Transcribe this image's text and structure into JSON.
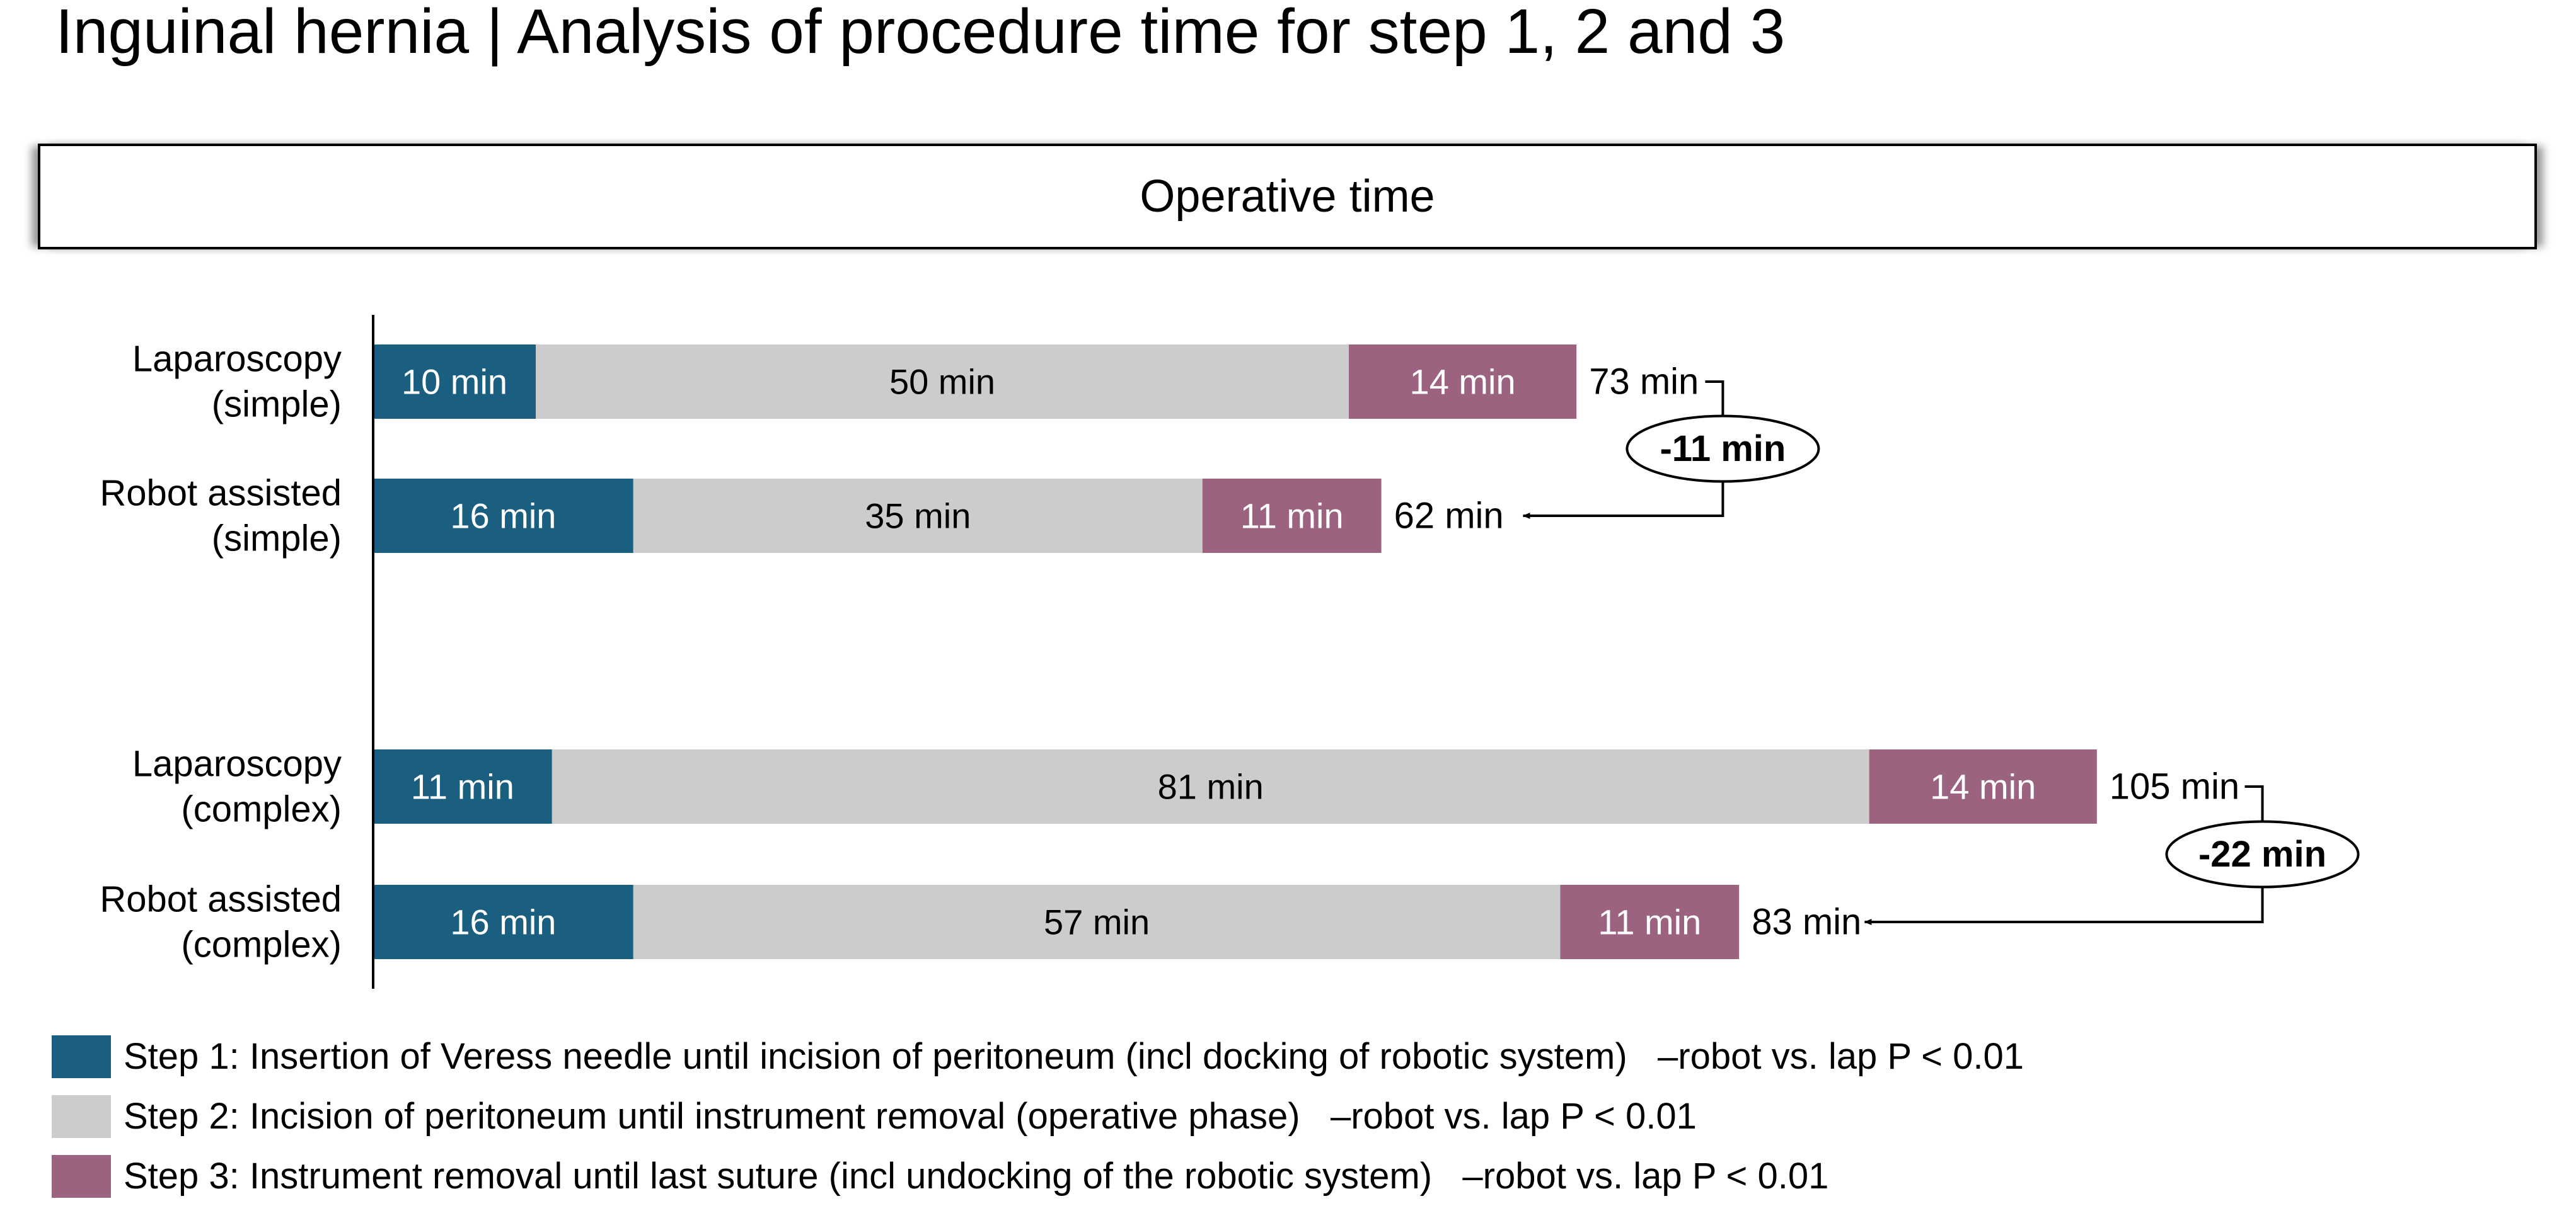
{
  "title": "Inguinal hernia | Analysis of procedure time for step 1, 2 and 3",
  "header_label": "Operative time",
  "colors": {
    "step1": "#1a5f80",
    "step2": "#cccccc",
    "step3": "#9b6380"
  },
  "chart_data": {
    "type": "bar",
    "orientation": "horizontal",
    "stacked": true,
    "unit": "min",
    "categories": [
      "Laparoscopy\n(simple)",
      "Robot assisted\n(simple)",
      "Laparoscopy\n(complex)",
      "Robot assisted\n(complex)"
    ],
    "series": [
      {
        "name": "Step 1: Insertion of Veress needle until incision of peritoneum (incl docking of robotic system)",
        "values": [
          10,
          16,
          11,
          16
        ],
        "labels": [
          "10 min",
          "16 min",
          "11 min",
          "16 min"
        ]
      },
      {
        "name": "Step 2: Incision of peritoneum until instrument removal (operative phase)",
        "values": [
          50,
          35,
          81,
          57
        ],
        "labels": [
          "50 min",
          "35 min",
          "81 min",
          "57 min"
        ]
      },
      {
        "name": "Step 3: Instrument removal until last suture (incl undocking of the robotic system)",
        "values": [
          14,
          11,
          14,
          11
        ],
        "labels": [
          "14 min",
          "11 min",
          "14 min",
          "11 min"
        ]
      }
    ],
    "totals": [
      73,
      62,
      105,
      83
    ],
    "total_labels": [
      "73 min",
      "62 min",
      "105 min",
      "83 min"
    ],
    "comparisons": [
      {
        "from": 0,
        "to": 1,
        "label": "-11 min"
      },
      {
        "from": 2,
        "to": 3,
        "label": "-22 min"
      }
    ],
    "legend": [
      {
        "series": 0,
        "stat": "–robot vs. lap P < 0.01"
      },
      {
        "series": 1,
        "stat": "–robot vs. lap P < 0.01"
      },
      {
        "series": 2,
        "stat": "–robot vs. lap P < 0.01"
      }
    ],
    "legend_position": "bottom"
  }
}
